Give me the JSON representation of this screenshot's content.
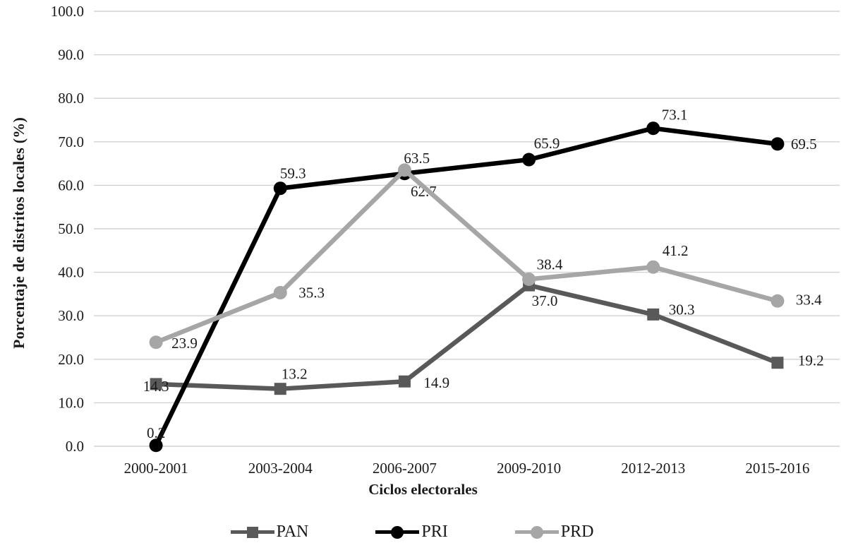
{
  "chart_data": {
    "type": "line",
    "title": "",
    "xlabel": "Ciclos electorales",
    "ylabel": "Porcentaje de distritos locales (%)",
    "categories": [
      "2000-2001",
      "2003-2004",
      "2006-2007",
      "2009-2010",
      "2012-2013",
      "2015-2016"
    ],
    "ylim": [
      0,
      100
    ],
    "ytick_step": 10,
    "ytick_label_format": "one-decimal",
    "grid": "horizontal",
    "legend_position": "bottom",
    "colors": {
      "gridline": "#d2d2d2",
      "text": "#1a1a1a",
      "background": "#ffffff"
    },
    "series": [
      {
        "name": "PAN",
        "color": "#595959",
        "marker": "square",
        "values": [
          14.3,
          13.2,
          14.9,
          37.0,
          30.3,
          19.2
        ],
        "label_offsets": [
          [
            0,
            10,
            "middle"
          ],
          [
            20,
            -14,
            "middle"
          ],
          [
            27,
            9,
            "start"
          ],
          [
            4,
            29,
            "start"
          ],
          [
            22,
            0,
            "start"
          ],
          [
            29,
            4,
            "start"
          ]
        ]
      },
      {
        "name": "PRI",
        "color": "#000000",
        "marker": "circle",
        "values": [
          0.2,
          59.3,
          62.7,
          65.9,
          73.1,
          69.5
        ],
        "label_offsets": [
          [
            0,
            -11,
            "middle"
          ],
          [
            18,
            -14,
            "middle"
          ],
          [
            27,
            32,
            "middle"
          ],
          [
            7,
            -16,
            "start"
          ],
          [
            12,
            -12,
            "start"
          ],
          [
            19,
            7,
            "start"
          ]
        ]
      },
      {
        "name": "PRD",
        "color": "#a6a6a6",
        "marker": "circle",
        "values": [
          23.9,
          35.3,
          63.5,
          38.4,
          41.2,
          33.4
        ],
        "label_offsets": [
          [
            22,
            8,
            "start"
          ],
          [
            26,
            7,
            "start"
          ],
          [
            -1,
            -10,
            "start"
          ],
          [
            11,
            -14,
            "start"
          ],
          [
            13,
            -16,
            "start"
          ],
          [
            26,
            5,
            "start"
          ]
        ]
      }
    ]
  }
}
